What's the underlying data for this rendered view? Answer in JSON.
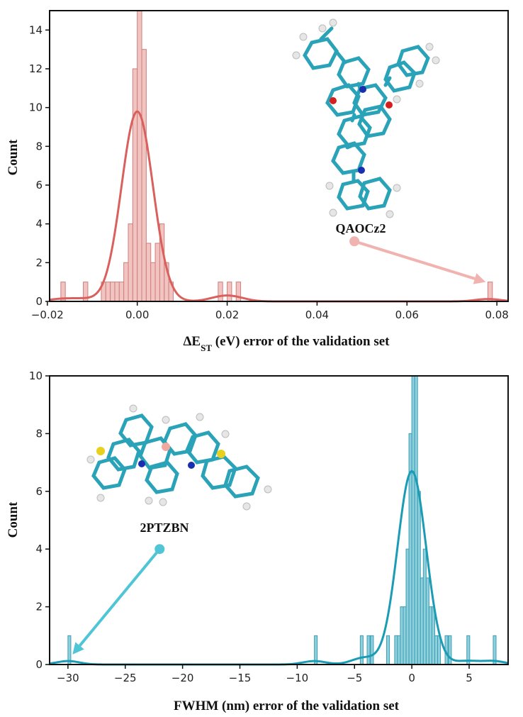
{
  "chart_data": [
    {
      "type": "histogram",
      "xlabel_main": "ΔE",
      "xlabel_sub": "ST",
      "xlabel_rest": " (eV) error of the validation set",
      "ylabel": "Count",
      "xlim": [
        -0.0195,
        0.0825
      ],
      "ylim": [
        0,
        15
      ],
      "xticks": [
        -0.02,
        0,
        0.02,
        0.04,
        0.06,
        0.08
      ],
      "xtick_labels": [
        "−0.02",
        "0.00",
        "0.02",
        "0.04",
        "0.06",
        "0.08"
      ],
      "yticks": [
        0,
        2,
        4,
        6,
        8,
        10,
        12,
        14
      ],
      "bin_width": 0.001,
      "bins": [
        [
          -0.017,
          1
        ],
        [
          -0.012,
          1
        ],
        [
          -0.008,
          1
        ],
        [
          -0.007,
          1
        ],
        [
          -0.006,
          1
        ],
        [
          -0.005,
          1
        ],
        [
          -0.004,
          1
        ],
        [
          -0.003,
          2
        ],
        [
          -0.002,
          4
        ],
        [
          -0.001,
          12
        ],
        [
          0.0,
          15
        ],
        [
          0.001,
          13
        ],
        [
          0.002,
          3
        ],
        [
          0.003,
          2
        ],
        [
          0.004,
          3
        ],
        [
          0.005,
          4
        ],
        [
          0.006,
          2
        ],
        [
          0.007,
          1
        ],
        [
          0.018,
          1
        ],
        [
          0.02,
          1
        ],
        [
          0.022,
          1
        ],
        [
          0.078,
          1
        ]
      ],
      "kde": {
        "peak": 9.8,
        "mu": 0.0,
        "sigma": 0.0035
      },
      "bar_color": "#f1c4c1",
      "bar_edge": "#cf7f7c",
      "kde_color": "#d9605d",
      "annotation": {
        "label": "QAOCz2",
        "color": "#f0b3b0",
        "from": [
          0.0483,
          3.1
        ],
        "to": [
          0.0775,
          1.0
        ]
      }
    },
    {
      "type": "histogram",
      "xlabel": "FWHM (nm) error of the validation set",
      "ylabel": "Count",
      "xlim": [
        -31.6,
        8.4
      ],
      "ylim": [
        0,
        10
      ],
      "xticks": [
        -30,
        -25,
        -20,
        -15,
        -10,
        -5,
        0,
        5
      ],
      "xtick_labels": [
        "−30",
        "−25",
        "−20",
        "−15",
        "−10",
        "−5",
        "0",
        "5"
      ],
      "yticks": [
        0,
        2,
        4,
        6,
        8,
        10
      ],
      "bin_width": 0.25,
      "bins": [
        [
          -30.0,
          1
        ],
        [
          -8.5,
          1
        ],
        [
          -4.5,
          1
        ],
        [
          -3.9,
          1
        ],
        [
          -3.6,
          1
        ],
        [
          -2.2,
          1
        ],
        [
          -1.5,
          1
        ],
        [
          -1.25,
          1
        ],
        [
          -1.0,
          2
        ],
        [
          -0.75,
          2
        ],
        [
          -0.5,
          4
        ],
        [
          -0.25,
          8
        ],
        [
          0.0,
          10
        ],
        [
          0.25,
          10
        ],
        [
          0.5,
          6
        ],
        [
          0.75,
          3
        ],
        [
          1.0,
          4
        ],
        [
          1.25,
          3
        ],
        [
          1.5,
          2
        ],
        [
          1.75,
          2
        ],
        [
          2.0,
          1
        ],
        [
          2.25,
          1
        ],
        [
          2.9,
          1
        ],
        [
          3.2,
          1
        ],
        [
          4.8,
          1
        ],
        [
          7.1,
          1
        ]
      ],
      "kde": {
        "peak": 6.7,
        "mu": 0.0,
        "sigma": 1.25
      },
      "bar_color": "#8fd0dc",
      "bar_edge": "#3b9fb4",
      "kde_color": "#1b9cb5",
      "annotation": {
        "label": "2PTZBN",
        "color": "#4fc5d6",
        "from": [
          -22.0,
          4.0
        ],
        "to": [
          -29.6,
          0.35
        ]
      }
    }
  ]
}
